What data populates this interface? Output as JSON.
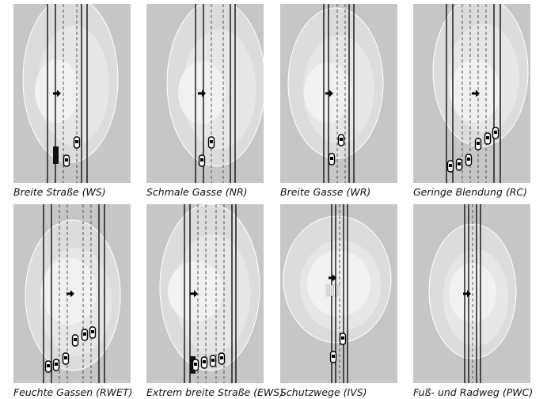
{
  "panels": [
    {
      "caption": "Breite Straße (WS)"
    },
    {
      "caption": "Schmale Gasse (NR)"
    },
    {
      "caption": "Breite Gasse (WR)"
    },
    {
      "caption": "Geringe Blendung (RC)"
    },
    {
      "caption": "Feuchte Gassen (RWET)"
    },
    {
      "caption": "Extrem breite Straße (EWS)"
    },
    {
      "caption": "Schutzwege (IVS)"
    },
    {
      "caption": "Fuß- und Radweg (PWC)"
    }
  ]
}
